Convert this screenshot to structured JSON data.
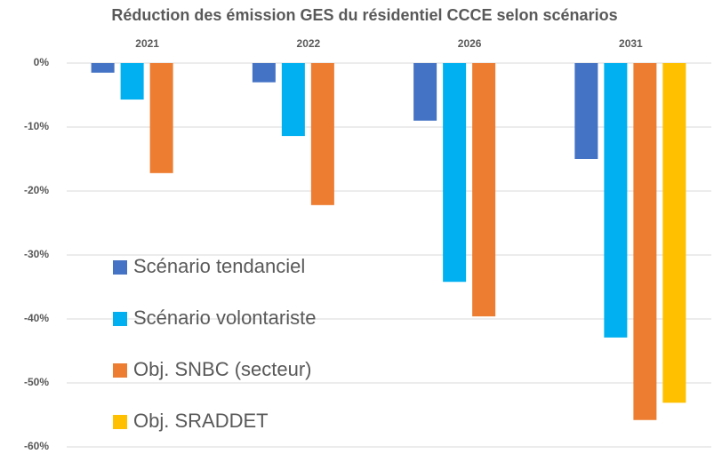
{
  "chart_data": {
    "type": "bar",
    "title": "Réduction des émission GES du résidentiel CCCE selon scénarios",
    "categories": [
      "2021",
      "2022",
      "2026",
      "2031"
    ],
    "series": [
      {
        "name": "Scénario tendanciel",
        "color": "#4472c4",
        "values": [
          -1.5,
          -3,
          -9,
          -15
        ]
      },
      {
        "name": "Scénario volontariste",
        "color": "#00b0f0",
        "values": [
          -5.7,
          -11.4,
          -34.2,
          -42.9
        ]
      },
      {
        "name": "Obj. SNBC (secteur)",
        "color": "#ed7d31",
        "values": [
          -17.2,
          -22.2,
          -39.6,
          -55.8
        ]
      },
      {
        "name": "Obj. SRADDET",
        "color": "#ffc000",
        "values": [
          null,
          null,
          null,
          -53.1
        ]
      }
    ],
    "ylim": [
      -60,
      0
    ],
    "yticks": [
      {
        "value": 0,
        "label": "0%"
      },
      {
        "value": -10,
        "label": "-10%"
      },
      {
        "value": -20,
        "label": "-20%"
      },
      {
        "value": -30,
        "label": "-30%"
      },
      {
        "value": -40,
        "label": "-40%"
      },
      {
        "value": -50,
        "label": "-50%"
      },
      {
        "value": -60,
        "label": "-60%"
      }
    ],
    "grid": true,
    "legend": "left"
  }
}
